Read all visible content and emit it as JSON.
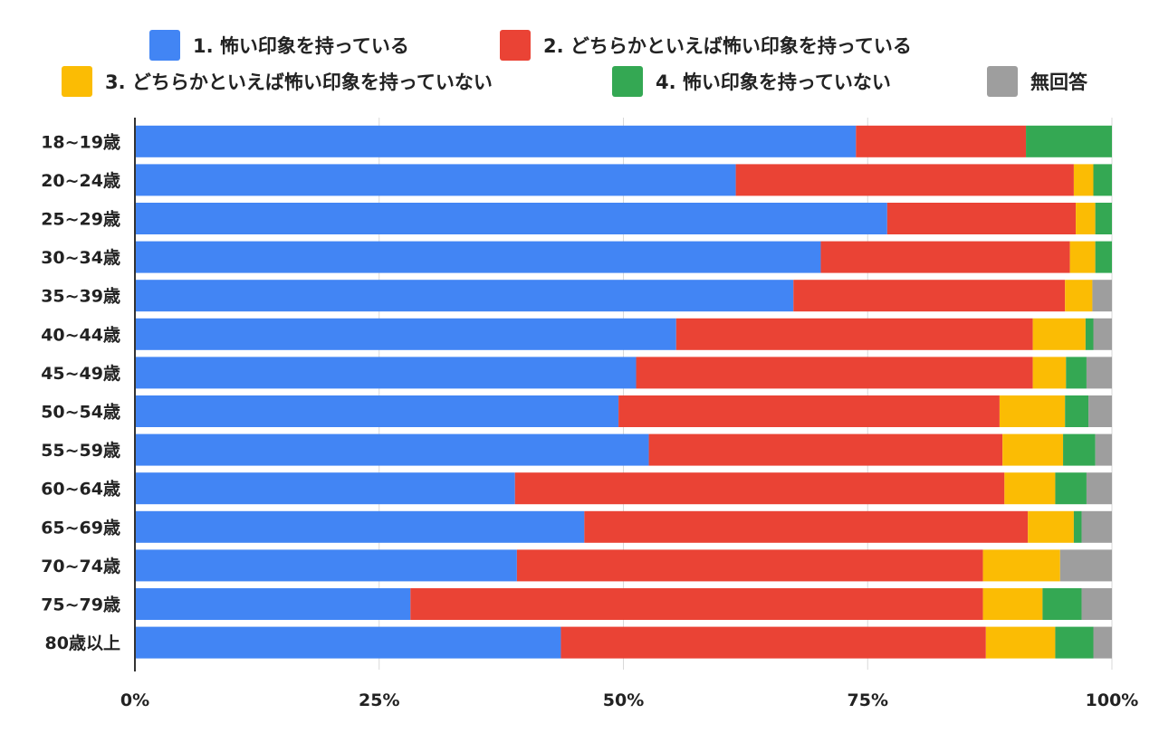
{
  "chart_data": {
    "type": "bar",
    "orientation": "horizontal",
    "stacked": "percent",
    "categories": [
      "18~19歳",
      "20~24歳",
      "25~29歳",
      "30~34歳",
      "35~39歳",
      "40~44歳",
      "45~49歳",
      "50~54歳",
      "55~59歳",
      "60~64歳",
      "65~69歳",
      "70~74歳",
      "75~79歳",
      "80歳以上"
    ],
    "series": [
      {
        "name": "1. 怖い印象を持っている",
        "color": "#4285f4",
        "values": [
          73.8,
          61.5,
          77.0,
          70.2,
          67.4,
          55.4,
          51.3,
          49.5,
          52.6,
          38.9,
          46.0,
          39.1,
          28.2,
          43.6
        ]
      },
      {
        "name": "2. どちらかといえば怖い印象を持っている",
        "color": "#ea4335",
        "values": [
          17.4,
          34.6,
          19.3,
          25.5,
          27.8,
          36.5,
          40.6,
          39.0,
          36.2,
          50.1,
          45.4,
          47.7,
          58.6,
          43.5
        ]
      },
      {
        "name": "3. どちらかといえば怖い印象を持っていない",
        "color": "#fbbc04",
        "values": [
          0,
          2.0,
          2.0,
          2.6,
          2.8,
          5.4,
          3.4,
          6.7,
          6.2,
          5.2,
          4.7,
          7.9,
          6.1,
          7.1
        ]
      },
      {
        "name": "4. 怖い印象を持っていない",
        "color": "#34a853",
        "values": [
          8.8,
          1.9,
          1.7,
          1.7,
          0,
          0.8,
          2.1,
          2.4,
          3.3,
          3.2,
          0.8,
          0,
          4.0,
          3.9
        ]
      },
      {
        "name": "無回答",
        "color": "#9e9e9e",
        "values": [
          0,
          0,
          0,
          0,
          2.0,
          1.9,
          2.6,
          2.4,
          1.7,
          2.6,
          3.1,
          5.3,
          3.1,
          1.9
        ]
      }
    ],
    "x_ticks": [
      "0%",
      "25%",
      "50%",
      "75%",
      "100%"
    ],
    "xlim": [
      0,
      100
    ],
    "grid": true,
    "legend": "top"
  }
}
